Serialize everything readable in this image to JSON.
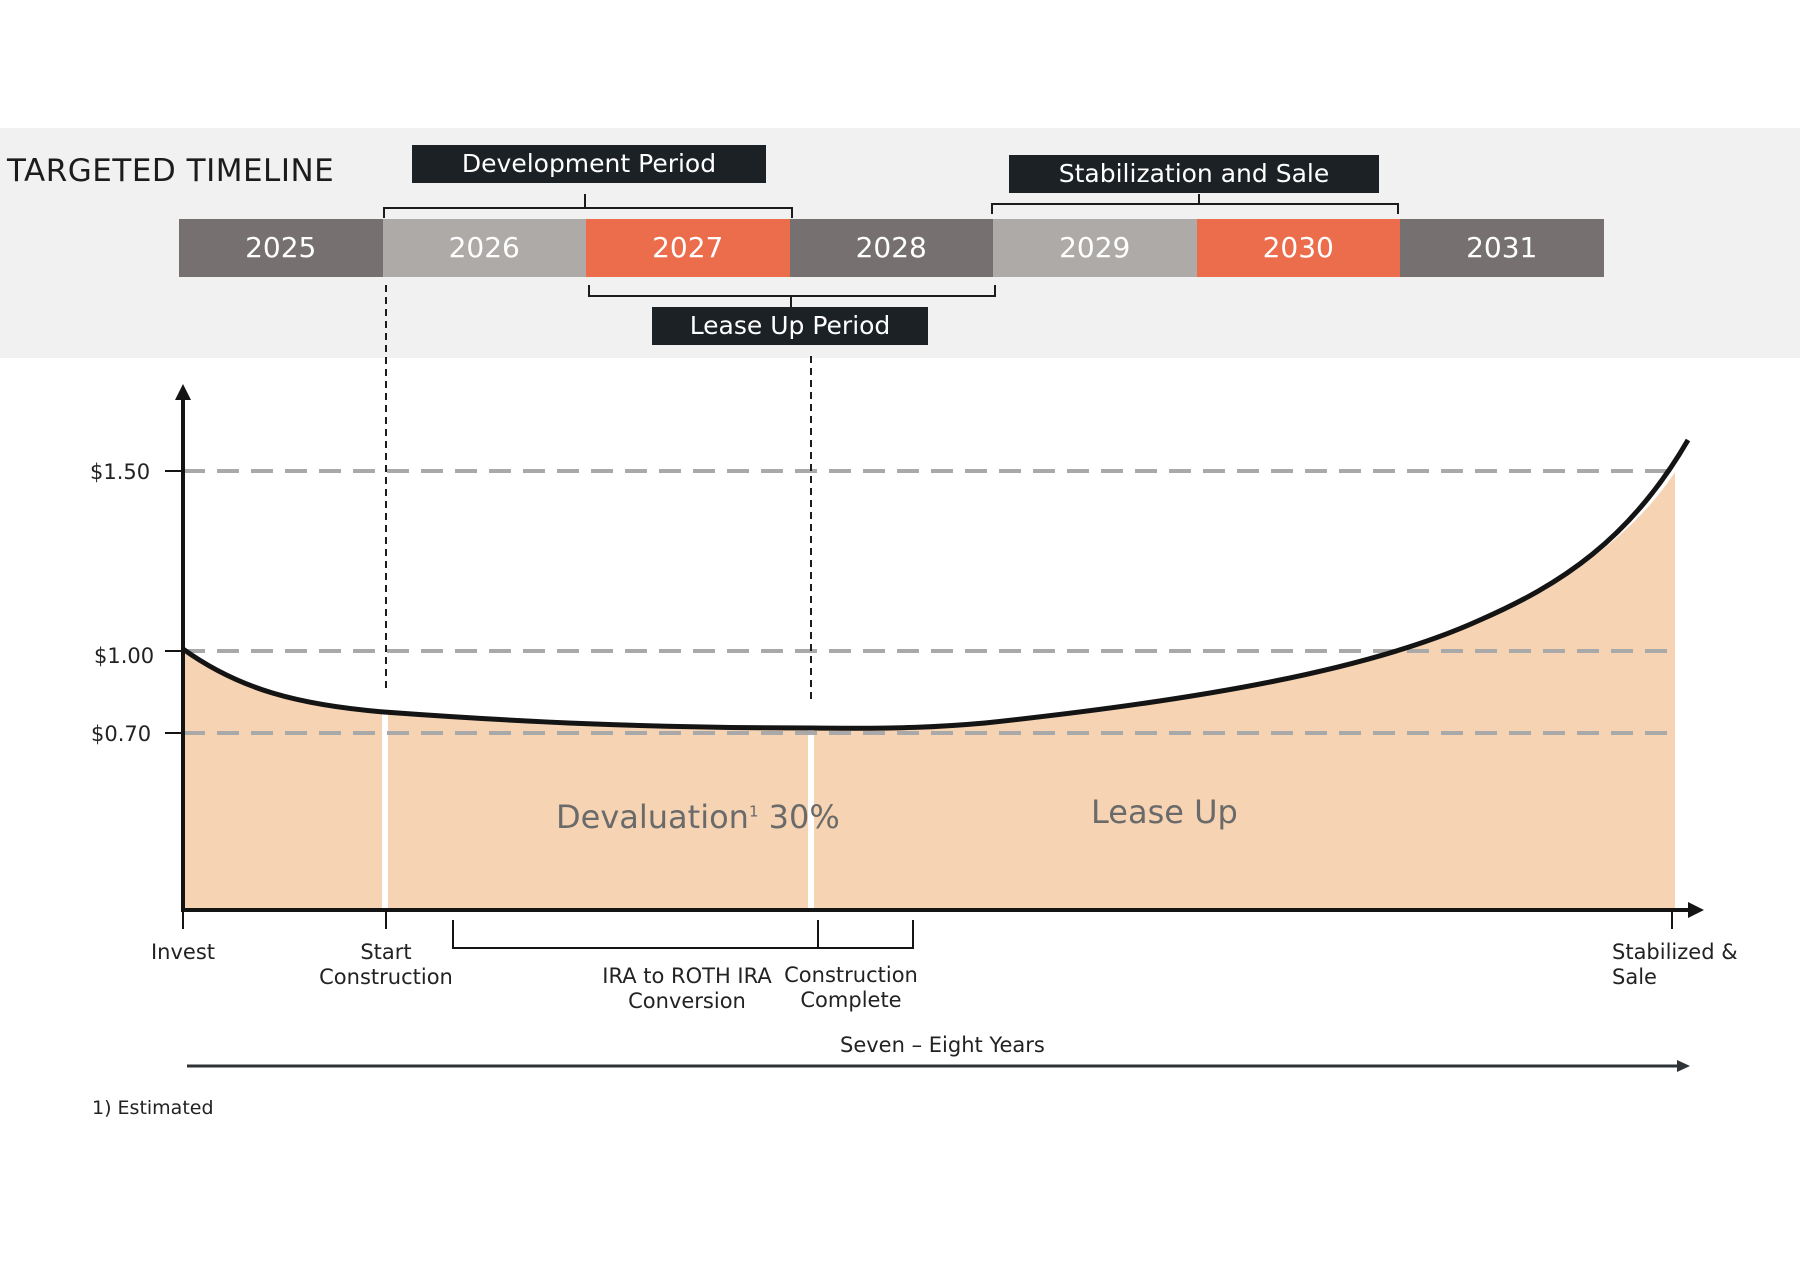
{
  "header": {
    "title": "TARGETED TIMELINE",
    "development_period": "Development Period",
    "stabilization_and_sale": "Stabilization and Sale",
    "lease_up_period": "Lease Up Period"
  },
  "years": [
    {
      "label": "2025",
      "color": "#767170"
    },
    {
      "label": "2026",
      "color": "#aeaaa8"
    },
    {
      "label": "2027",
      "color": "#ec6d4c"
    },
    {
      "label": "2028",
      "color": "#767170"
    },
    {
      "label": "2029",
      "color": "#aeaaa8"
    },
    {
      "label": "2030",
      "color": "#ec6d4c"
    },
    {
      "label": "2031",
      "color": "#767170"
    }
  ],
  "value_axis": {
    "ticks": [
      "$1.50",
      "$1.00",
      "$0.70"
    ]
  },
  "milestones": {
    "invest": "Invest",
    "start_construction": [
      "Start",
      "Construction"
    ],
    "ira_conversion": [
      "IRA to ROTH IRA",
      "Conversion"
    ],
    "construction_complete": [
      "Construction",
      "Complete"
    ],
    "stabilized_sale": [
      "Stabilized &",
      "Sale"
    ]
  },
  "regions": {
    "devaluation": "Devaluation",
    "devaluation_sup": "1",
    "devaluation_pct": " 30%",
    "lease_up": "Lease Up"
  },
  "duration": "Seven – Eight Years",
  "footnote": "1) Estimated",
  "colors": {
    "fill": "#f6d4b3",
    "dark": "#1c2126",
    "accent": "#ec6d4c",
    "dash": "#a9a9a9"
  }
}
